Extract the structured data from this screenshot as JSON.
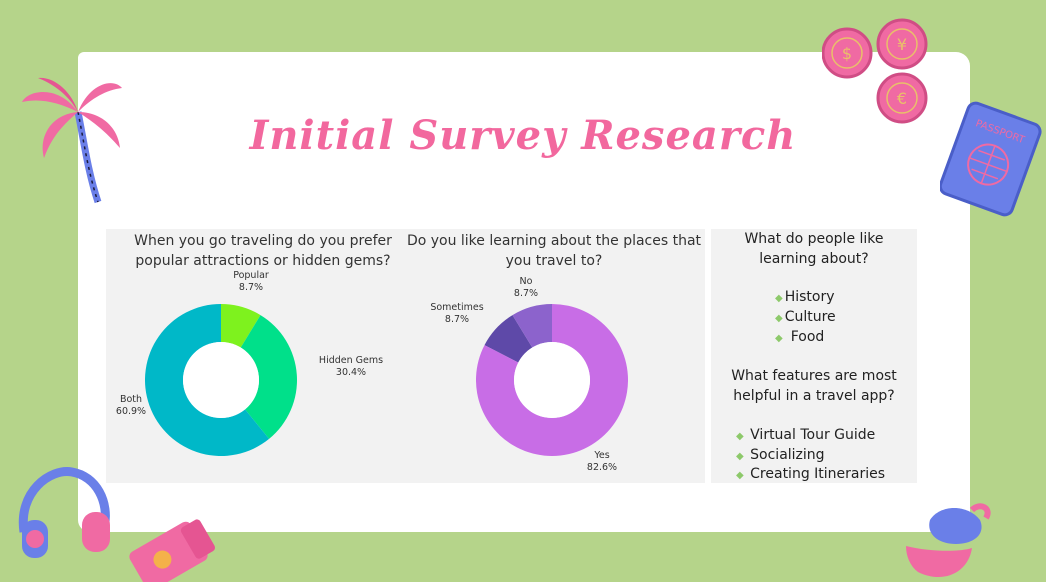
{
  "title": "Initial Survey Research",
  "colors": {
    "background": "#b5d48a",
    "title": "#f2689e",
    "panel": "#f2f2f2",
    "bullet": "#8dc96a"
  },
  "chart_data": [
    {
      "type": "pie",
      "title": "When you go traveling do you prefer popular attractions or hidden gems?",
      "categories": [
        "Popular",
        "Hidden Gems",
        "Both"
      ],
      "values": [
        8.7,
        30.4,
        60.9
      ],
      "labels": [
        "8.7%",
        "30.4%",
        "60.9%"
      ],
      "colors": [
        "#7ef21e",
        "#00e08a",
        "#00b8c8"
      ]
    },
    {
      "type": "pie",
      "title": "Do you like learning about the places that you travel to?",
      "categories": [
        "No",
        "Sometimes",
        "Yes"
      ],
      "values": [
        8.7,
        8.7,
        82.6
      ],
      "labels": [
        "8.7%",
        "8.7%",
        "82.6%"
      ],
      "colors": [
        "#5e49a8",
        "#8c63cc",
        "#c86de6"
      ]
    }
  ],
  "side": {
    "q1": "What do people like learning about?",
    "list1": [
      "History",
      "Culture",
      "Food"
    ],
    "q2": "What features are most helpful in a travel app?",
    "list2": [
      "Virtual Tour Guide",
      "Socializing",
      "Creating Itineraries"
    ]
  },
  "icons": [
    "palm-tree-icon",
    "coin-icon",
    "passport-icon",
    "headphones-icon",
    "sunscreen-icon",
    "sun-hat-icon"
  ]
}
